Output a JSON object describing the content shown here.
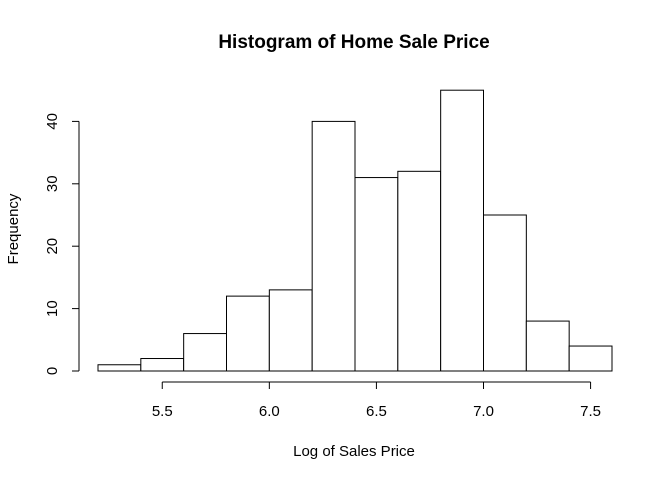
{
  "chart_data": {
    "type": "bar",
    "title": "Histogram of Home Sale Price",
    "xlabel": "Log of Sales Price",
    "ylabel": "Frequency",
    "bin_edges": [
      5.2,
      5.4,
      5.6,
      5.8,
      6.0,
      6.2,
      6.4,
      6.6,
      6.8,
      7.0,
      7.2,
      7.4,
      7.6
    ],
    "values": [
      1,
      2,
      6,
      12,
      13,
      40,
      31,
      32,
      45,
      25,
      8,
      4
    ],
    "xlim": [
      5.2,
      7.6
    ],
    "ylim": [
      0,
      45
    ],
    "x_ticks": [
      "5.5",
      "6.0",
      "6.5",
      "7.0",
      "7.5"
    ],
    "y_ticks": [
      "0",
      "10",
      "20",
      "30",
      "40"
    ],
    "grid": false,
    "colors": {
      "fill": "#ffffff",
      "stroke": "#000000"
    }
  }
}
